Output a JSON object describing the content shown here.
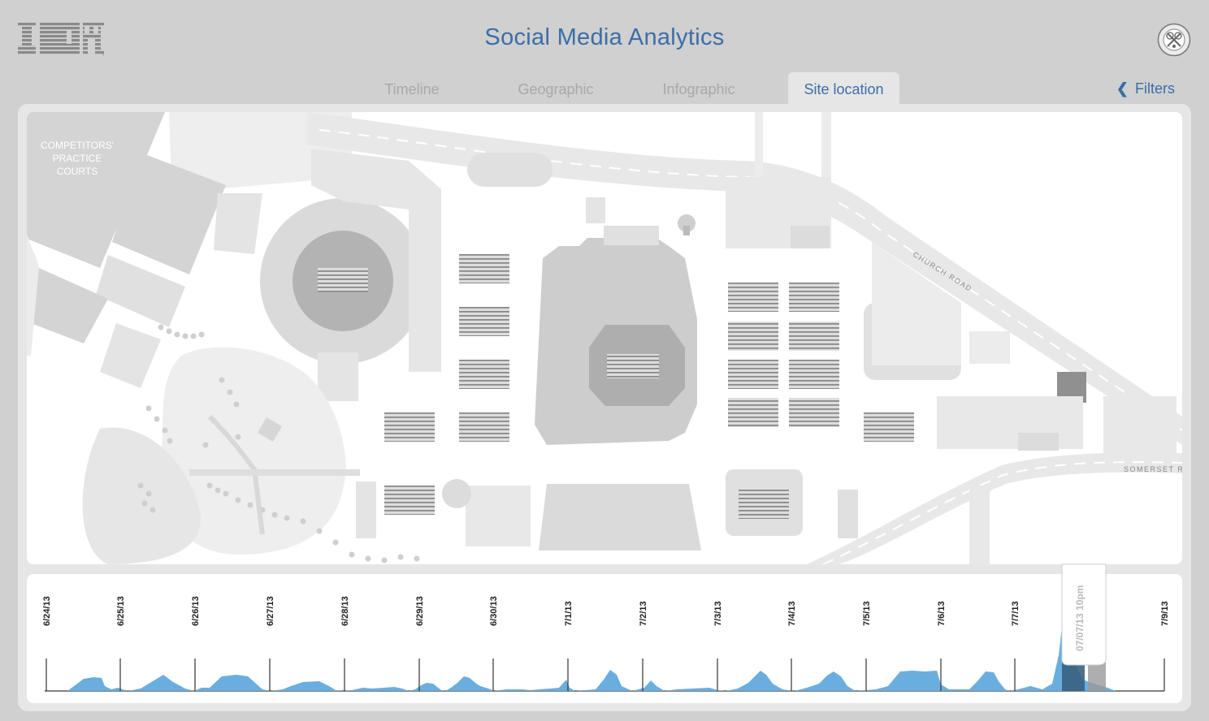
{
  "header": {
    "brand": "IBM",
    "title": "Social Media Analytics",
    "partner_logo": "wimbledon-championships-logo"
  },
  "tabs": [
    {
      "label": "Timeline",
      "active": false
    },
    {
      "label": "Geographic",
      "active": false
    },
    {
      "label": "Infographic",
      "active": false
    },
    {
      "label": "Site location",
      "active": true
    }
  ],
  "filters": {
    "label": "Filters",
    "icon": "chevron-left-icon"
  },
  "map": {
    "labels": {
      "practice_courts": [
        "COMPETITORS'",
        "PRACTICE",
        "COURTS"
      ],
      "church_road": "CHURCH ROAD",
      "somerset_road": "SOMERSET RO"
    }
  },
  "timeline": {
    "dates": [
      "6/24/13",
      "6/25/13",
      "6/26/13",
      "6/27/13",
      "6/28/13",
      "6/29/13",
      "6/30/13",
      "7/1/13",
      "7/2/13",
      "7/3/13",
      "7/4/13",
      "7/5/13",
      "7/6/13",
      "7/7/13",
      "7/9/13"
    ],
    "selection_label": "07/07/13 10pm",
    "colors": {
      "area": "#6aaee0",
      "selected": "#3a6180",
      "handle": "#9a9a9a"
    }
  }
}
